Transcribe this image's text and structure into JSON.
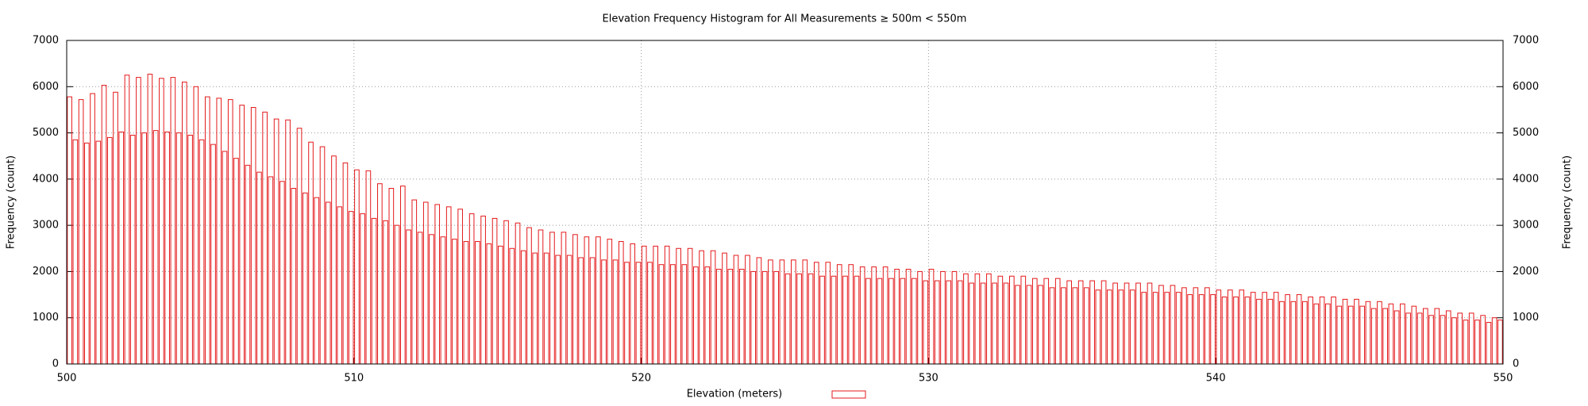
{
  "chart_data": {
    "type": "histogram",
    "title": "Elevation Frequency Histogram for All Measurements ≥ 500m < 550m",
    "xlabel": "Elevation (meters)",
    "ylabel": "Frequency (count)",
    "y2label": "Frequency (count)",
    "xlim": [
      500,
      550
    ],
    "xticks": [
      500,
      510,
      520,
      530,
      540,
      550
    ],
    "ylim": [
      0,
      7000
    ],
    "yticks": [
      0,
      1000,
      2000,
      3000,
      4000,
      5000,
      6000,
      7000
    ],
    "y2lim": [
      0,
      7000
    ],
    "y2ticks": [
      0,
      1000,
      2000,
      3000,
      4000,
      5000,
      6000,
      7000
    ],
    "grid": true,
    "color": "#e41a1c",
    "bins": [
      500,
      500.2,
      500.4,
      500.6,
      500.8,
      501,
      501.2,
      501.4,
      501.6,
      501.8,
      502,
      502.2,
      502.4,
      502.6,
      502.8,
      503,
      503.2,
      503.4,
      503.6,
      503.8,
      504,
      504.2,
      504.4,
      504.6,
      504.8,
      505,
      505.2,
      505.4,
      505.6,
      505.8,
      506,
      506.2,
      506.4,
      506.6,
      506.8,
      507,
      507.2,
      507.4,
      507.6,
      507.8,
      508,
      508.2,
      508.4,
      508.6,
      508.8,
      509,
      509.2,
      509.4,
      509.6,
      509.8,
      510,
      510.2,
      510.4,
      510.6,
      510.8,
      511,
      511.2,
      511.4,
      511.6,
      511.8,
      512,
      512.2,
      512.4,
      512.6,
      512.8,
      513,
      513.2,
      513.4,
      513.6,
      513.8,
      514,
      514.2,
      514.4,
      514.6,
      514.8,
      515,
      515.2,
      515.4,
      515.6,
      515.8,
      516,
      516.2,
      516.4,
      516.6,
      516.8,
      517,
      517.2,
      517.4,
      517.6,
      517.8,
      518,
      518.2,
      518.4,
      518.6,
      518.8,
      519,
      519.2,
      519.4,
      519.6,
      519.8,
      520,
      520.2,
      520.4,
      520.6,
      520.8,
      521,
      521.2,
      521.4,
      521.6,
      521.8,
      522,
      522.2,
      522.4,
      522.6,
      522.8,
      523,
      523.2,
      523.4,
      523.6,
      523.8,
      524,
      524.2,
      524.4,
      524.6,
      524.8,
      525,
      525.2,
      525.4,
      525.6,
      525.8,
      526,
      526.2,
      526.4,
      526.6,
      526.8,
      527,
      527.2,
      527.4,
      527.6,
      527.8,
      528,
      528.2,
      528.4,
      528.6,
      528.8,
      529,
      529.2,
      529.4,
      529.6,
      529.8,
      530,
      530.2,
      530.4,
      530.6,
      530.8,
      531,
      531.2,
      531.4,
      531.6,
      531.8,
      532,
      532.2,
      532.4,
      532.6,
      532.8,
      533,
      533.2,
      533.4,
      533.6,
      533.8,
      534,
      534.2,
      534.4,
      534.6,
      534.8,
      535,
      535.2,
      535.4,
      535.6,
      535.8,
      536,
      536.2,
      536.4,
      536.6,
      536.8,
      537,
      537.2,
      537.4,
      537.6,
      537.8,
      538,
      538.2,
      538.4,
      538.6,
      538.8,
      539,
      539.2,
      539.4,
      539.6,
      539.8,
      540,
      540.2,
      540.4,
      540.6,
      540.8,
      541,
      541.2,
      541.4,
      541.6,
      541.8,
      542,
      542.2,
      542.4,
      542.6,
      542.8,
      543,
      543.2,
      543.4,
      543.6,
      543.8,
      544,
      544.2,
      544.4,
      544.6,
      544.8,
      545,
      545.2,
      545.4,
      545.6,
      545.8,
      546,
      546.2,
      546.4,
      546.6,
      546.8,
      547,
      547.2,
      547.4,
      547.6,
      547.8,
      548,
      548.2,
      548.4,
      548.6,
      548.8,
      549,
      549.2,
      549.4,
      549.6,
      549.8,
      550
    ],
    "counts": [
      5780,
      4850,
      5720,
      4780,
      5850,
      4820,
      6030,
      4900,
      5880,
      5020,
      6250,
      4950,
      6200,
      5000,
      6270,
      5050,
      6180,
      5020,
      6200,
      5000,
      6100,
      4950,
      6000,
      4850,
      5780,
      4750,
      5750,
      4600,
      5720,
      4450,
      5600,
      4300,
      5550,
      4150,
      5450,
      4050,
      5300,
      3950,
      5280,
      3800,
      5100,
      3700,
      4800,
      3600,
      4700,
      3500,
      4500,
      3400,
      4350,
      3300,
      4200,
      3250,
      4180,
      3150,
      3900,
      3100,
      3800,
      3000,
      3850,
      2900,
      3550,
      2850,
      3500,
      2800,
      3450,
      2750,
      3400,
      2700,
      3350,
      2650,
      3250,
      2650,
      3200,
      2600,
      3150,
      2550,
      3100,
      2500,
      3050,
      2450,
      2950,
      2400,
      2900,
      2400,
      2850,
      2350,
      2850,
      2350,
      2800,
      2300,
      2750,
      2300,
      2750,
      2250,
      2700,
      2250,
      2650,
      2200,
      2600,
      2200,
      2550,
      2200,
      2550,
      2150,
      2550,
      2150,
      2500,
      2150,
      2500,
      2100,
      2450,
      2100,
      2450,
      2050,
      2400,
      2050,
      2350,
      2050,
      2350,
      2000,
      2300,
      2000,
      2250,
      2000,
      2250,
      1950,
      2250,
      1950,
      2250,
      1950,
      2200,
      1900,
      2200,
      1900,
      2150,
      1900,
      2150,
      1900,
      2100,
      1850,
      2100,
      1850,
      2100,
      1850,
      2050,
      1850,
      2050,
      1850,
      2000,
      1800,
      2050,
      1800,
      2000,
      1800,
      2000,
      1800,
      1950,
      1750,
      1950,
      1750,
      1950,
      1750,
      1900,
      1750,
      1900,
      1700,
      1900,
      1700,
      1850,
      1700,
      1850,
      1650,
      1850,
      1650,
      1800,
      1650,
      1800,
      1650,
      1800,
      1600,
      1800,
      1600,
      1750,
      1600,
      1750,
      1600,
      1750,
      1550,
      1750,
      1550,
      1700,
      1550,
      1700,
      1550,
      1650,
      1500,
      1650,
      1500,
      1650,
      1500,
      1600,
      1450,
      1600,
      1450,
      1600,
      1450,
      1550,
      1400,
      1550,
      1400,
      1550,
      1350,
      1500,
      1350,
      1500,
      1350,
      1450,
      1300,
      1450,
      1300,
      1450,
      1250,
      1400,
      1250,
      1400,
      1250,
      1350,
      1200,
      1350,
      1200,
      1300,
      1150,
      1300,
      1100,
      1250,
      1100,
      1200,
      1050,
      1200,
      1050,
      1150,
      1000,
      1100,
      950,
      1100,
      950,
      1050,
      900,
      1000,
      950
    ]
  }
}
